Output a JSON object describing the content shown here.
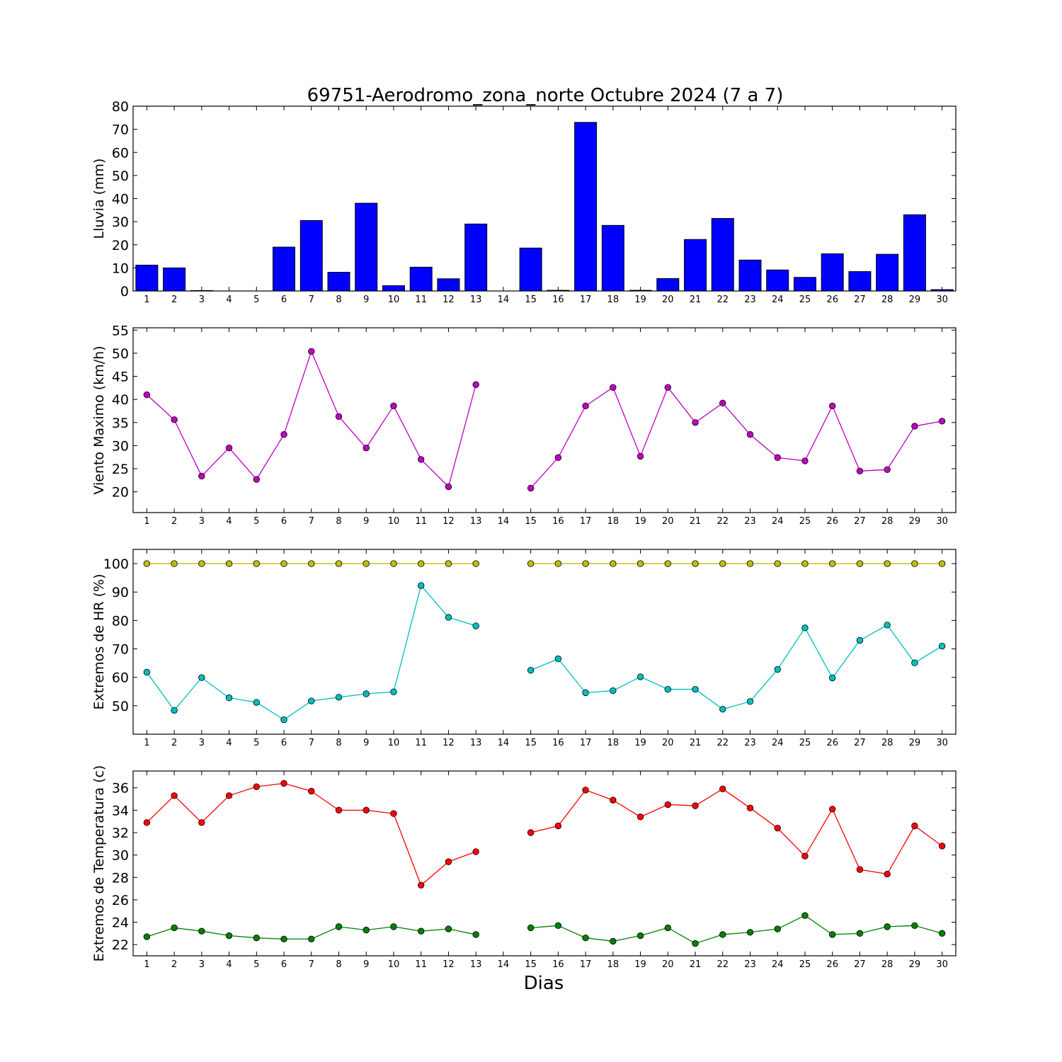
{
  "title": "69751-Aerodromo_zona_norte Octubre 2024  (7 a 7)",
  "xlabel": "Dias",
  "days": [
    1,
    2,
    3,
    4,
    5,
    6,
    7,
    8,
    9,
    10,
    11,
    12,
    13,
    14,
    15,
    16,
    17,
    18,
    19,
    20,
    21,
    22,
    23,
    24,
    25,
    26,
    27,
    28,
    29,
    30
  ],
  "colors": {
    "rain": "#0000ff",
    "wind": "#bf00bf",
    "hr_max": "#bfbf00",
    "hr_min": "#00bfbf",
    "t_max": "#ff0000",
    "t_min": "#008000"
  },
  "chart_data": [
    {
      "type": "bar",
      "ylabel": "Lluvia (mm)",
      "ylim": [
        0,
        80
      ],
      "yticks": [
        0,
        10,
        20,
        30,
        40,
        50,
        60,
        70,
        80
      ],
      "series": [
        {
          "values": [
            11.2,
            10.0,
            0.2,
            0,
            0,
            19.0,
            30.5,
            8.1,
            38.0,
            2.3,
            10.3,
            5.3,
            29.0,
            0,
            18.6,
            0.3,
            73.0,
            28.4,
            0.3,
            5.4,
            22.3,
            31.4,
            13.4,
            9.1,
            5.9,
            16.1,
            8.4,
            15.9,
            33.0,
            0.6
          ]
        }
      ]
    },
    {
      "type": "line",
      "ylabel": "Viento Maximo (km/h)",
      "ylim": [
        15.5,
        55.5
      ],
      "yticks": [
        20,
        25,
        30,
        35,
        40,
        45,
        50,
        55
      ],
      "series": [
        {
          "values": [
            41.0,
            35.6,
            23.4,
            29.5,
            22.7,
            32.4,
            50.4,
            36.3,
            29.5,
            38.6,
            27.0,
            21.1,
            43.2,
            null,
            20.8,
            27.4,
            38.6,
            42.6,
            27.7,
            42.6,
            35.0,
            39.2,
            32.4,
            27.4,
            26.7,
            38.6,
            24.5,
            24.8,
            34.2,
            35.3
          ]
        }
      ]
    },
    {
      "type": "line",
      "ylabel": "Extremos de HR (%)",
      "ylim": [
        40,
        105
      ],
      "yticks": [
        50,
        60,
        70,
        80,
        90,
        100
      ],
      "series": [
        {
          "values": [
            100,
            100,
            100,
            100,
            100,
            100,
            100,
            100,
            100,
            100,
            100,
            100,
            100,
            null,
            100,
            100,
            100,
            100,
            100,
            100,
            100,
            100,
            100,
            100,
            100,
            100,
            100,
            100,
            100,
            100
          ]
        },
        {
          "values": [
            61.8,
            48.4,
            59.9,
            52.8,
            51.2,
            45.1,
            51.7,
            53.0,
            54.2,
            54.9,
            92.3,
            81.1,
            78.1,
            null,
            62.5,
            66.5,
            54.6,
            55.3,
            60.2,
            55.8,
            55.8,
            48.8,
            51.5,
            62.8,
            77.4,
            59.8,
            73.0,
            78.4,
            65.1,
            71.0
          ]
        }
      ]
    },
    {
      "type": "line",
      "ylabel": "Extremos de Temperatura (c)",
      "ylim": [
        21,
        37.5
      ],
      "yticks": [
        22,
        24,
        26,
        28,
        30,
        32,
        34,
        36
      ],
      "series": [
        {
          "values": [
            32.9,
            35.3,
            32.9,
            35.3,
            36.1,
            36.4,
            35.7,
            34.0,
            34.0,
            33.7,
            27.3,
            29.4,
            30.3,
            null,
            32.0,
            32.6,
            35.8,
            34.9,
            33.4,
            34.5,
            34.4,
            35.9,
            34.2,
            32.4,
            29.9,
            34.1,
            28.7,
            28.3,
            32.6,
            30.8
          ]
        },
        {
          "values": [
            22.7,
            23.5,
            23.2,
            22.8,
            22.6,
            22.5,
            22.5,
            23.6,
            23.3,
            23.6,
            23.2,
            23.4,
            22.9,
            null,
            23.5,
            23.7,
            22.6,
            22.3,
            22.8,
            23.5,
            22.1,
            22.9,
            23.1,
            23.4,
            24.6,
            22.9,
            23.0,
            23.6,
            23.7,
            23.0
          ]
        }
      ]
    }
  ]
}
